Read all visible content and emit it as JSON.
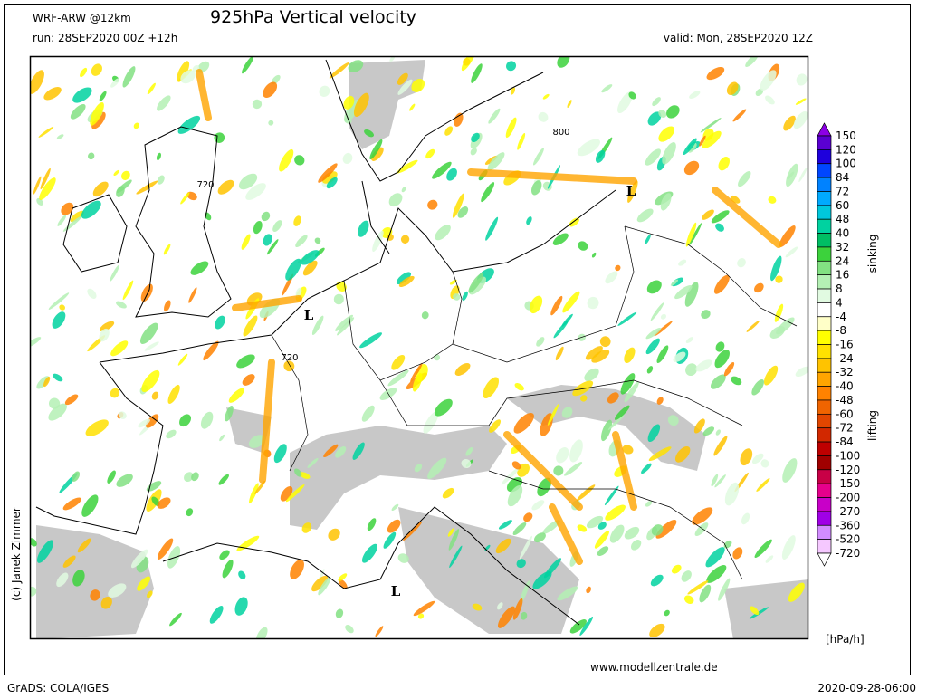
{
  "header": {
    "model": "WRF-ARW @12km",
    "title": "925hPa Vertical velocity",
    "run": "run: 28SEP2020 00Z +12h",
    "valid": "valid: Mon, 28SEP2020 12Z"
  },
  "map": {
    "labels": [
      "L",
      "L",
      "L",
      "720",
      "720",
      "800"
    ]
  },
  "legend": {
    "levels": [
      150,
      120,
      100,
      84,
      72,
      60,
      48,
      40,
      32,
      24,
      16,
      8,
      4,
      -4,
      -8,
      -16,
      -24,
      -32,
      -40,
      -48,
      -60,
      -72,
      -84,
      -100,
      -120,
      -150,
      -200,
      -270,
      -360,
      -520,
      -720
    ],
    "colors": [
      "#8c00e6",
      "#5a00d2",
      "#1e00dc",
      "#0046ff",
      "#0082ff",
      "#00aaff",
      "#00c8dc",
      "#00d2a0",
      "#00be64",
      "#3cd23c",
      "#82e182",
      "#b4f0b4",
      "#e1fae1",
      "#ffffff",
      "#ffffc8",
      "#ffff00",
      "#ffe100",
      "#ffc300",
      "#ffa500",
      "#ff8200",
      "#f06400",
      "#e14600",
      "#d22800",
      "#be0000",
      "#a00000",
      "#c80046",
      "#e6008c",
      "#c800c8",
      "#a000e6",
      "#d28cff",
      "#f5c8ff",
      "#ffffff"
    ],
    "upper_label": "sinking",
    "lower_label": "lifting",
    "unit": "[hPa/h]"
  },
  "footer": {
    "credit": "(c) Janek Zimmer",
    "website": "www.modellzentrale.de",
    "software": "GrADS: COLA/IGES",
    "timestamp": "2020-09-28-06:00"
  }
}
